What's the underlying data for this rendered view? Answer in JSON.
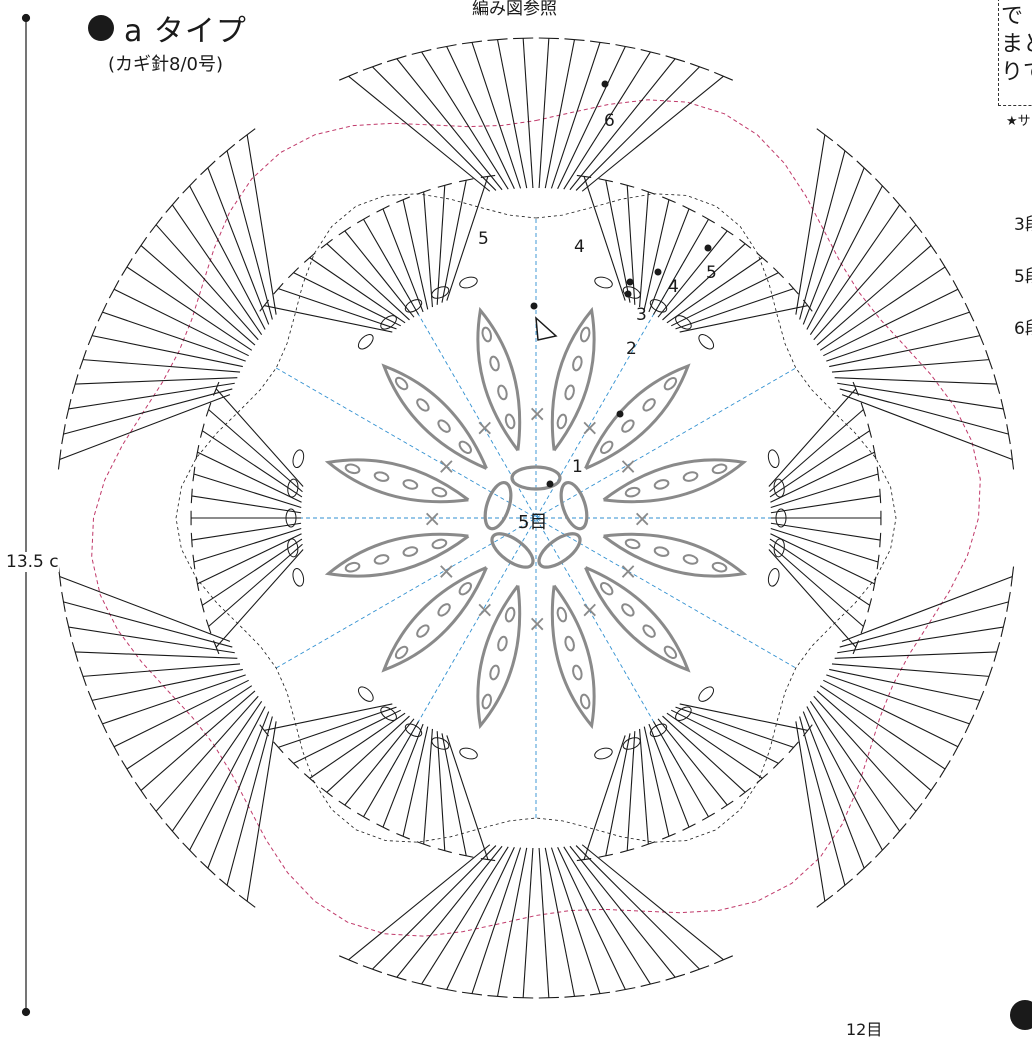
{
  "header": {
    "title": "a タイプ",
    "hook": "(カギ針8/0号)",
    "reference": "編み図参照"
  },
  "note": {
    "lines": [
      "で",
      "まと",
      "りで"
    ],
    "star": "★サ"
  },
  "side_labels": [
    "3段",
    "5段",
    "6段"
  ],
  "dimension": "13.5 c",
  "bottom_count": "12目",
  "center_label": "5目",
  "round_numbers": [
    "1",
    "2",
    "3",
    "4",
    "4",
    "5",
    "5",
    "6"
  ],
  "colors": {
    "ink": "#1a1a1a",
    "inner_grey": "#8a8a8a",
    "guide_blue": "#2f8fd0",
    "guide_red": "#c0396a"
  }
}
